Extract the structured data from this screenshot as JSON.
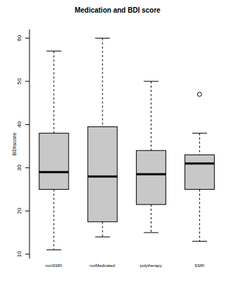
{
  "chart_data": {
    "type": "boxplot",
    "title": "Medication and BDI score",
    "y_label": "BDIscore",
    "categories": [
      "nonSSRI",
      "notMedicated",
      "polytherapy",
      "SSRI"
    ],
    "min": [
      11,
      14,
      15,
      13
    ],
    "q1": [
      25,
      17.5,
      21.5,
      25
    ],
    "median": [
      29,
      28,
      28.5,
      31
    ],
    "q3": [
      38,
      39.5,
      34,
      33
    ],
    "max": [
      57,
      60,
      50,
      38
    ],
    "outliers": [
      [],
      [],
      [],
      [
        47
      ]
    ],
    "color": "#c8c8c8",
    "ylim": [
      9,
      62
    ],
    "yticks": [
      10,
      20,
      30,
      40,
      50,
      60
    ]
  }
}
